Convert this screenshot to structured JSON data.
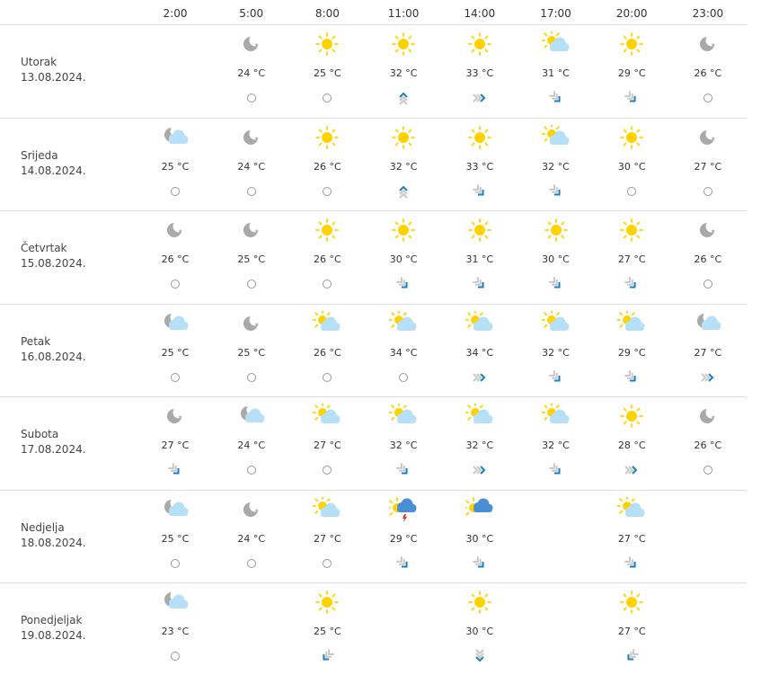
{
  "hours": [
    "2:00",
    "5:00",
    "8:00",
    "11:00",
    "14:00",
    "17:00",
    "20:00",
    "23:00"
  ],
  "colors": {
    "sun": "#FFD200",
    "cloud": "#B6E0F7",
    "moon": "#A9A9A9",
    "rain_cloud": "#4A8FD6",
    "wind_active": "#1A7FC1",
    "wind_muted": "#C8C8C8",
    "separator": "#DDDDDD"
  },
  "days": [
    {
      "name": "Utorak",
      "date": "13.08.2024.",
      "cells": [
        {
          "icon": "none",
          "temp": "",
          "wind": "none"
        },
        {
          "icon": "moon",
          "temp": "24 °C",
          "wind": "calm"
        },
        {
          "icon": "sun",
          "temp": "25 °C",
          "wind": "calm"
        },
        {
          "icon": "sun",
          "temp": "32 °C",
          "wind": "up"
        },
        {
          "icon": "sun",
          "temp": "33 °C",
          "wind": "right"
        },
        {
          "icon": "sun-cloud",
          "temp": "31 °C",
          "wind": "down-right"
        },
        {
          "icon": "sun",
          "temp": "29 °C",
          "wind": "down-right"
        },
        {
          "icon": "moon",
          "temp": "26 °C",
          "wind": "calm"
        }
      ]
    },
    {
      "name": "Srijeda",
      "date": "14.08.2024.",
      "cells": [
        {
          "icon": "moon-cloud",
          "temp": "25 °C",
          "wind": "calm"
        },
        {
          "icon": "moon",
          "temp": "24 °C",
          "wind": "calm"
        },
        {
          "icon": "sun",
          "temp": "26 °C",
          "wind": "calm"
        },
        {
          "icon": "sun",
          "temp": "32 °C",
          "wind": "up"
        },
        {
          "icon": "sun",
          "temp": "33 °C",
          "wind": "down-right"
        },
        {
          "icon": "sun-cloud",
          "temp": "32 °C",
          "wind": "down-right"
        },
        {
          "icon": "sun",
          "temp": "30 °C",
          "wind": "calm"
        },
        {
          "icon": "moon",
          "temp": "27 °C",
          "wind": "calm"
        }
      ]
    },
    {
      "name": "Četvrtak",
      "date": "15.08.2024.",
      "cells": [
        {
          "icon": "moon",
          "temp": "26 °C",
          "wind": "calm"
        },
        {
          "icon": "moon",
          "temp": "25 °C",
          "wind": "calm"
        },
        {
          "icon": "sun",
          "temp": "26 °C",
          "wind": "calm"
        },
        {
          "icon": "sun",
          "temp": "30 °C",
          "wind": "down-right"
        },
        {
          "icon": "sun",
          "temp": "31 °C",
          "wind": "down-right"
        },
        {
          "icon": "sun",
          "temp": "30 °C",
          "wind": "down-right"
        },
        {
          "icon": "sun",
          "temp": "27 °C",
          "wind": "down-right"
        },
        {
          "icon": "moon",
          "temp": "26 °C",
          "wind": "calm"
        }
      ]
    },
    {
      "name": "Petak",
      "date": "16.08.2024.",
      "cells": [
        {
          "icon": "moon-cloud",
          "temp": "25 °C",
          "wind": "calm"
        },
        {
          "icon": "moon",
          "temp": "25 °C",
          "wind": "calm"
        },
        {
          "icon": "sun-cloud",
          "temp": "26 °C",
          "wind": "calm"
        },
        {
          "icon": "sun-cloud",
          "temp": "34 °C",
          "wind": "calm"
        },
        {
          "icon": "sun-cloud",
          "temp": "34 °C",
          "wind": "right"
        },
        {
          "icon": "sun-cloud",
          "temp": "32 °C",
          "wind": "down-right"
        },
        {
          "icon": "sun-cloud",
          "temp": "29 °C",
          "wind": "down-right"
        },
        {
          "icon": "moon-cloud",
          "temp": "27 °C",
          "wind": "right"
        }
      ]
    },
    {
      "name": "Subota",
      "date": "17.08.2024.",
      "cells": [
        {
          "icon": "moon",
          "temp": "27 °C",
          "wind": "down-right"
        },
        {
          "icon": "moon-cloud",
          "temp": "24 °C",
          "wind": "calm"
        },
        {
          "icon": "sun-cloud",
          "temp": "27 °C",
          "wind": "calm"
        },
        {
          "icon": "sun-cloud",
          "temp": "32 °C",
          "wind": "down-right"
        },
        {
          "icon": "sun-cloud",
          "temp": "32 °C",
          "wind": "right"
        },
        {
          "icon": "sun-cloud",
          "temp": "32 °C",
          "wind": "down-right"
        },
        {
          "icon": "sun",
          "temp": "28 °C",
          "wind": "right"
        },
        {
          "icon": "moon",
          "temp": "26 °C",
          "wind": "calm"
        }
      ]
    },
    {
      "name": "Nedjelja",
      "date": "18.08.2024.",
      "cells": [
        {
          "icon": "moon-cloud",
          "temp": "25 °C",
          "wind": "calm"
        },
        {
          "icon": "moon",
          "temp": "24 °C",
          "wind": "calm"
        },
        {
          "icon": "sun-cloud",
          "temp": "27 °C",
          "wind": "calm"
        },
        {
          "icon": "sun-thunder",
          "temp": "29 °C",
          "wind": "down-right"
        },
        {
          "icon": "sun-rain",
          "temp": "30 °C",
          "wind": "down-right"
        },
        {
          "icon": "none",
          "temp": "",
          "wind": "none"
        },
        {
          "icon": "sun-cloud",
          "temp": "27 °C",
          "wind": "down-right"
        },
        {
          "icon": "none",
          "temp": "",
          "wind": "none"
        }
      ]
    },
    {
      "name": "Ponedjeljak",
      "date": "19.08.2024.",
      "cells": [
        {
          "icon": "moon-cloud",
          "temp": "23 °C",
          "wind": "calm"
        },
        {
          "icon": "none",
          "temp": "",
          "wind": "none"
        },
        {
          "icon": "sun",
          "temp": "25 °C",
          "wind": "down-left"
        },
        {
          "icon": "none",
          "temp": "",
          "wind": "none"
        },
        {
          "icon": "sun",
          "temp": "30 °C",
          "wind": "down"
        },
        {
          "icon": "none",
          "temp": "",
          "wind": "none"
        },
        {
          "icon": "sun",
          "temp": "27 °C",
          "wind": "down-left"
        },
        {
          "icon": "none",
          "temp": "",
          "wind": "none"
        }
      ]
    }
  ]
}
